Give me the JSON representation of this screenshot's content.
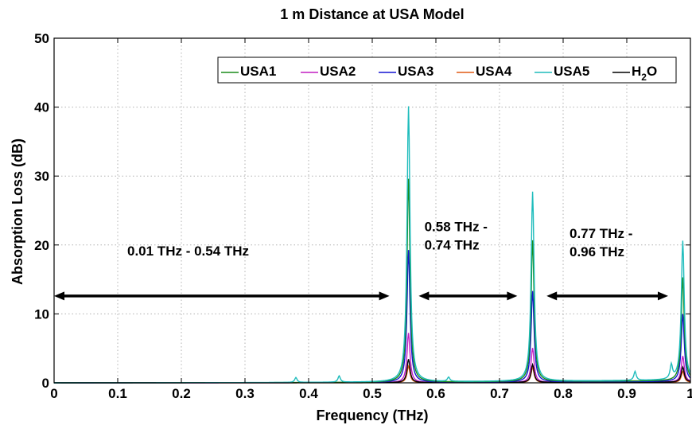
{
  "chart_data": {
    "type": "line",
    "title": "1 m Distance at USA Model",
    "xlabel": "Frequency (THz)",
    "ylabel": "Absorption Loss (dB)",
    "xlim": [
      0,
      1
    ],
    "ylim": [
      0,
      50
    ],
    "x_ticks": [
      "0",
      "0.1",
      "0.2",
      "0.3",
      "0.4",
      "0.5",
      "0.6",
      "0.7",
      "0.8",
      "0.9",
      "1"
    ],
    "y_ticks": [
      "0",
      "10",
      "20",
      "30",
      "40",
      "50"
    ],
    "grid": true,
    "legend_position": "top-right",
    "series": [
      {
        "name": "USA1",
        "color": "#1a8c1a",
        "peaks": [
          [
            0.557,
            29.5
          ],
          [
            0.752,
            20.5
          ],
          [
            0.988,
            15.0
          ]
        ],
        "baseline": 0.3
      },
      {
        "name": "USA2",
        "color": "#c21ec2",
        "peaks": [
          [
            0.557,
            7.2
          ],
          [
            0.752,
            5.0
          ],
          [
            0.988,
            3.8
          ]
        ],
        "baseline": 0.1
      },
      {
        "name": "USA3",
        "color": "#1414d2",
        "peaks": [
          [
            0.557,
            19.2
          ],
          [
            0.752,
            13.2
          ],
          [
            0.988,
            9.8
          ]
        ],
        "baseline": 0.2
      },
      {
        "name": "USA4",
        "color": "#e05a14",
        "peaks": [
          [
            0.557,
            2.4
          ],
          [
            0.752,
            2.2
          ],
          [
            0.988,
            1.6
          ]
        ],
        "baseline": 0.05
      },
      {
        "name": "USA5",
        "color": "#1ebcbc",
        "peaks": [
          [
            0.557,
            40.0
          ],
          [
            0.752,
            27.5
          ],
          [
            0.988,
            20.2
          ]
        ],
        "minor_peaks": [
          [
            0.38,
            0.7
          ],
          [
            0.448,
            0.9
          ],
          [
            0.62,
            0.6
          ],
          [
            0.913,
            1.3
          ],
          [
            0.97,
            2.0
          ]
        ],
        "baseline": 0.4
      },
      {
        "name": "H2O",
        "legend_label": {
          "main": "H",
          "sub": "2",
          "rest": "O"
        },
        "color": "#000000",
        "peaks": [
          [
            0.557,
            3.4
          ],
          [
            0.752,
            2.6
          ],
          [
            0.988,
            2.2
          ]
        ],
        "baseline": 0.1
      }
    ],
    "annotations": [
      {
        "lines": [
          "0.01 THz - 0.54 THz"
        ],
        "arrow_from": 0.0,
        "arrow_to": 0.527,
        "arrow_y": 12.6,
        "text_x": 0.115,
        "text_y": 18.5
      },
      {
        "lines": [
          "0.58 THz -",
          "0.74 THz"
        ],
        "arrow_from": 0.573,
        "arrow_to": 0.728,
        "arrow_y": 12.6,
        "text_x": 0.582,
        "text_y": 22.0
      },
      {
        "lines": [
          "0.77 THz -",
          "0.96 THz"
        ],
        "arrow_from": 0.774,
        "arrow_to": 0.965,
        "arrow_y": 12.6,
        "text_x": 0.81,
        "text_y": 21.0
      }
    ]
  }
}
